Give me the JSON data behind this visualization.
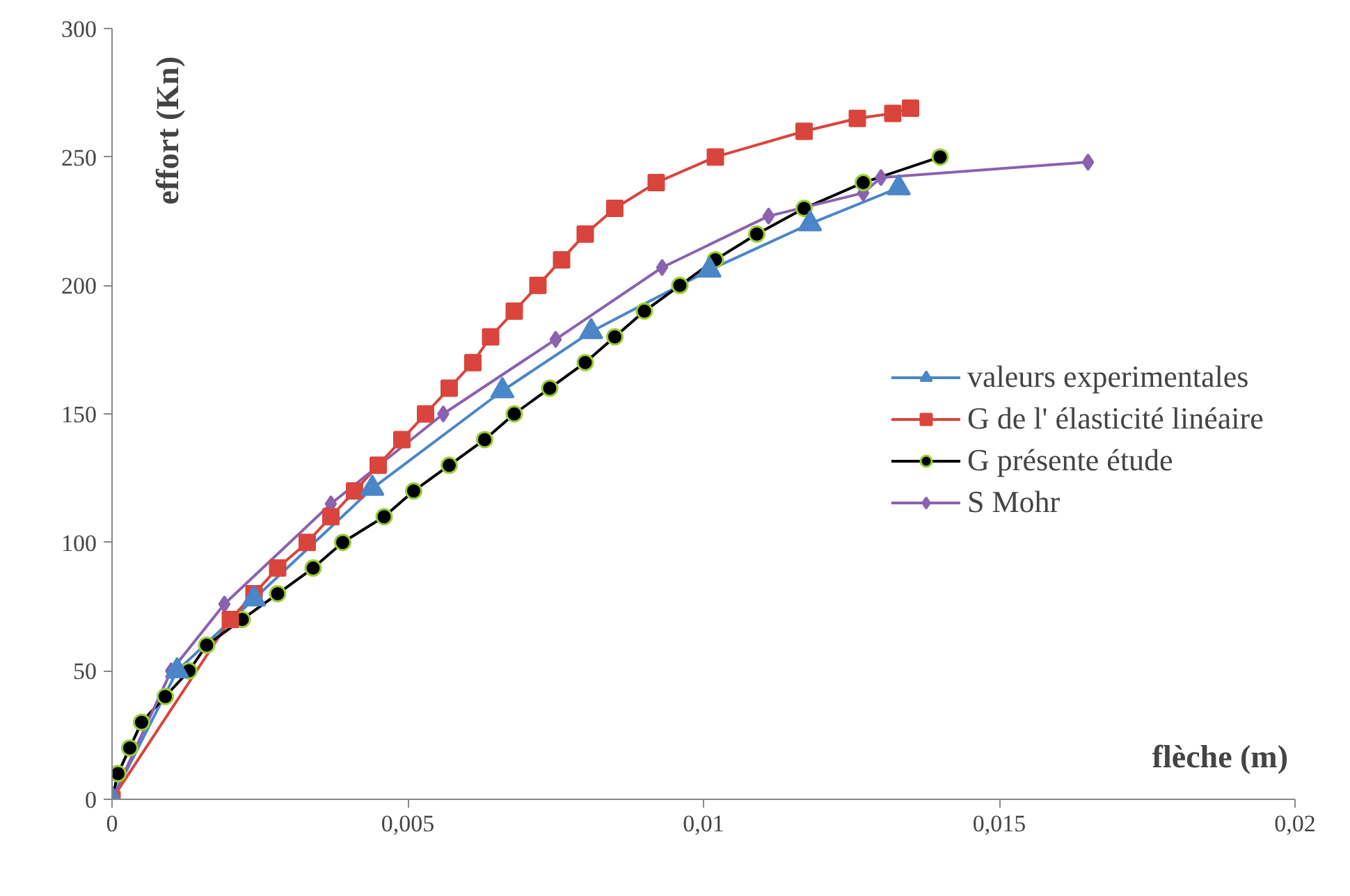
{
  "chart_data": {
    "type": "line",
    "xlabel": "flèche (m)",
    "ylabel": "effort (Kn)",
    "xlim": [
      0,
      0.02
    ],
    "ylim": [
      0,
      300
    ],
    "xticks": [
      0,
      {
        "value": 0.005,
        "label": "0,005"
      },
      {
        "value": 0.01,
        "label": "0,01"
      },
      {
        "value": 0.015,
        "label": "0,015"
      },
      {
        "value": 0.02,
        "label": "0,02"
      }
    ],
    "yticks": [
      0,
      50,
      100,
      150,
      200,
      250,
      300
    ],
    "grid": false,
    "legend": "right",
    "series": [
      {
        "name": "valeurs experimentales",
        "color": "#4a86c8",
        "marker": "triangle",
        "x": [
          0,
          0.0011,
          0.0024,
          0.0044,
          0.0066,
          0.0081,
          0.0101,
          0.0118,
          0.0133
        ],
        "values": [
          0,
          50,
          78,
          121,
          159,
          182,
          206,
          224,
          238
        ]
      },
      {
        "name": "G de l' élasticité linéaire",
        "color": "#d9453d",
        "marker": "square",
        "x": [
          0,
          0.002,
          0.0024,
          0.0028,
          0.0033,
          0.0037,
          0.0041,
          0.0045,
          0.0049,
          0.0053,
          0.0057,
          0.0061,
          0.0064,
          0.0068,
          0.0072,
          0.0076,
          0.008,
          0.0085,
          0.0092,
          0.0102,
          0.0117,
          0.0126,
          0.0132,
          0.0135
        ],
        "values": [
          0,
          70,
          80,
          90,
          100,
          110,
          120,
          130,
          140,
          150,
          160,
          170,
          180,
          190,
          200,
          210,
          220,
          230,
          240,
          250,
          260,
          265,
          267,
          269
        ]
      },
      {
        "name": "G présente étude",
        "color": "#000000",
        "marker": "circle",
        "x": [
          0,
          0.0001,
          0.0003,
          0.0005,
          0.0009,
          0.0013,
          0.0016,
          0.0022,
          0.0028,
          0.0034,
          0.0039,
          0.0046,
          0.0051,
          0.0057,
          0.0063,
          0.0068,
          0.0074,
          0.008,
          0.0085,
          0.009,
          0.0096,
          0.0102,
          0.0109,
          0.0117,
          0.0127,
          0.014
        ],
        "values": [
          0,
          10,
          20,
          30,
          40,
          50,
          60,
          70,
          80,
          90,
          100,
          110,
          120,
          130,
          140,
          150,
          160,
          170,
          180,
          190,
          200,
          210,
          220,
          230,
          240,
          250
        ]
      },
      {
        "name": "S Mohr",
        "color": "#8a62b0",
        "marker": "diamond",
        "x": [
          0,
          0.001,
          0.0019,
          0.0037,
          0.0056,
          0.0075,
          0.0093,
          0.0111,
          0.0127,
          0.013,
          0.0165
        ],
        "values": [
          0,
          50,
          76,
          115,
          150,
          179,
          207,
          227,
          236,
          242,
          248
        ]
      }
    ]
  }
}
